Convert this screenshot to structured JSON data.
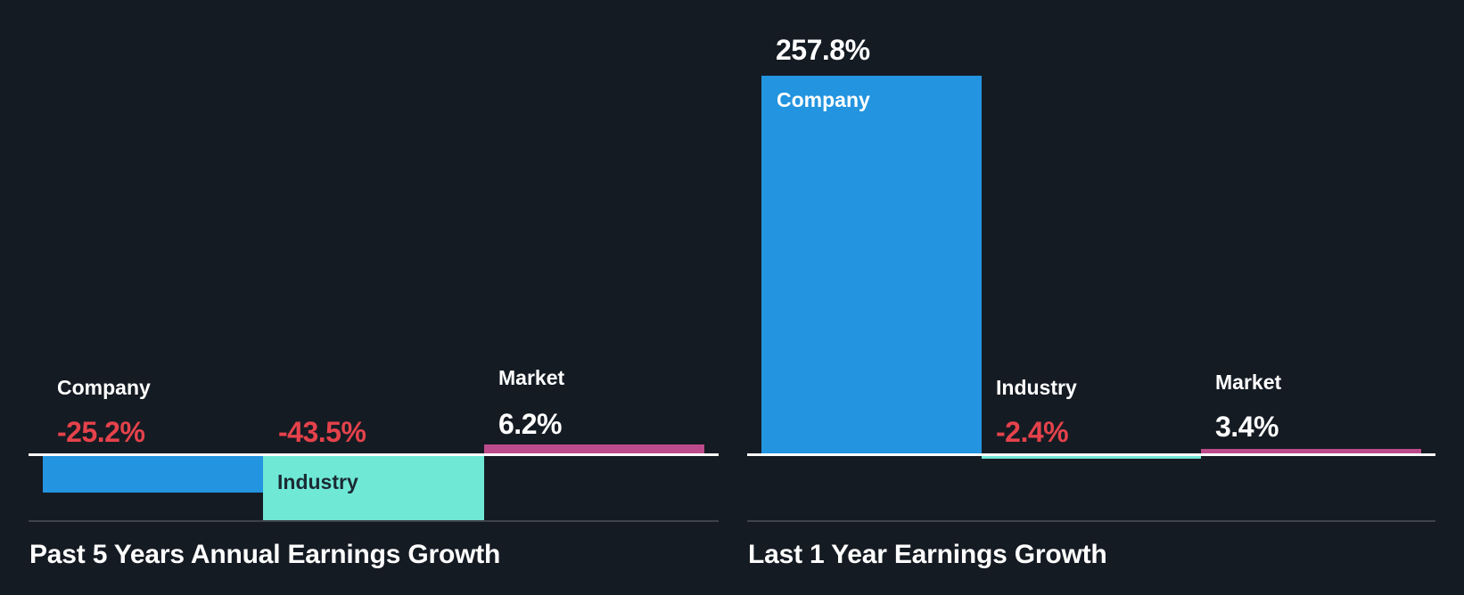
{
  "colors": {
    "background": "#151b23",
    "company": "#2394df",
    "industry": "#6fe8d6",
    "market": "#bc4b8b",
    "negative_text": "#e5424b",
    "positive_text": "#ffffff",
    "baseline": "#ffffff",
    "axis": "#3e424a"
  },
  "chart_data": [
    {
      "type": "bar",
      "title": "Past 5 Years Annual Earnings Growth",
      "categories": [
        "Company",
        "Industry",
        "Market"
      ],
      "values": [
        -25.2,
        -43.5,
        6.2
      ],
      "value_labels": [
        "-25.2%",
        "-43.5%",
        "6.2%"
      ],
      "unit": "%",
      "xlabel": "",
      "ylabel": "",
      "grid": false,
      "legend": "none (labels attached to bars)"
    },
    {
      "type": "bar",
      "title": "Last 1 Year Earnings Growth",
      "categories": [
        "Company",
        "Industry",
        "Market"
      ],
      "values": [
        257.8,
        -2.4,
        3.4
      ],
      "value_labels": [
        "257.8%",
        "-2.4%",
        "3.4%"
      ],
      "unit": "%",
      "xlabel": "",
      "ylabel": "",
      "grid": false,
      "legend": "none (labels attached to bars)"
    }
  ],
  "left_chart": {
    "title": "Past 5 Years Annual Earnings Growth",
    "bars": [
      {
        "label": "Company",
        "value": "-25.2%"
      },
      {
        "label": "Industry",
        "value": "-43.5%"
      },
      {
        "label": "Market",
        "value": "6.2%"
      }
    ]
  },
  "right_chart": {
    "title": "Last 1 Year Earnings Growth",
    "bars": [
      {
        "label": "Company",
        "value": "257.8%"
      },
      {
        "label": "Industry",
        "value": "-2.4%"
      },
      {
        "label": "Market",
        "value": "3.4%"
      }
    ]
  }
}
